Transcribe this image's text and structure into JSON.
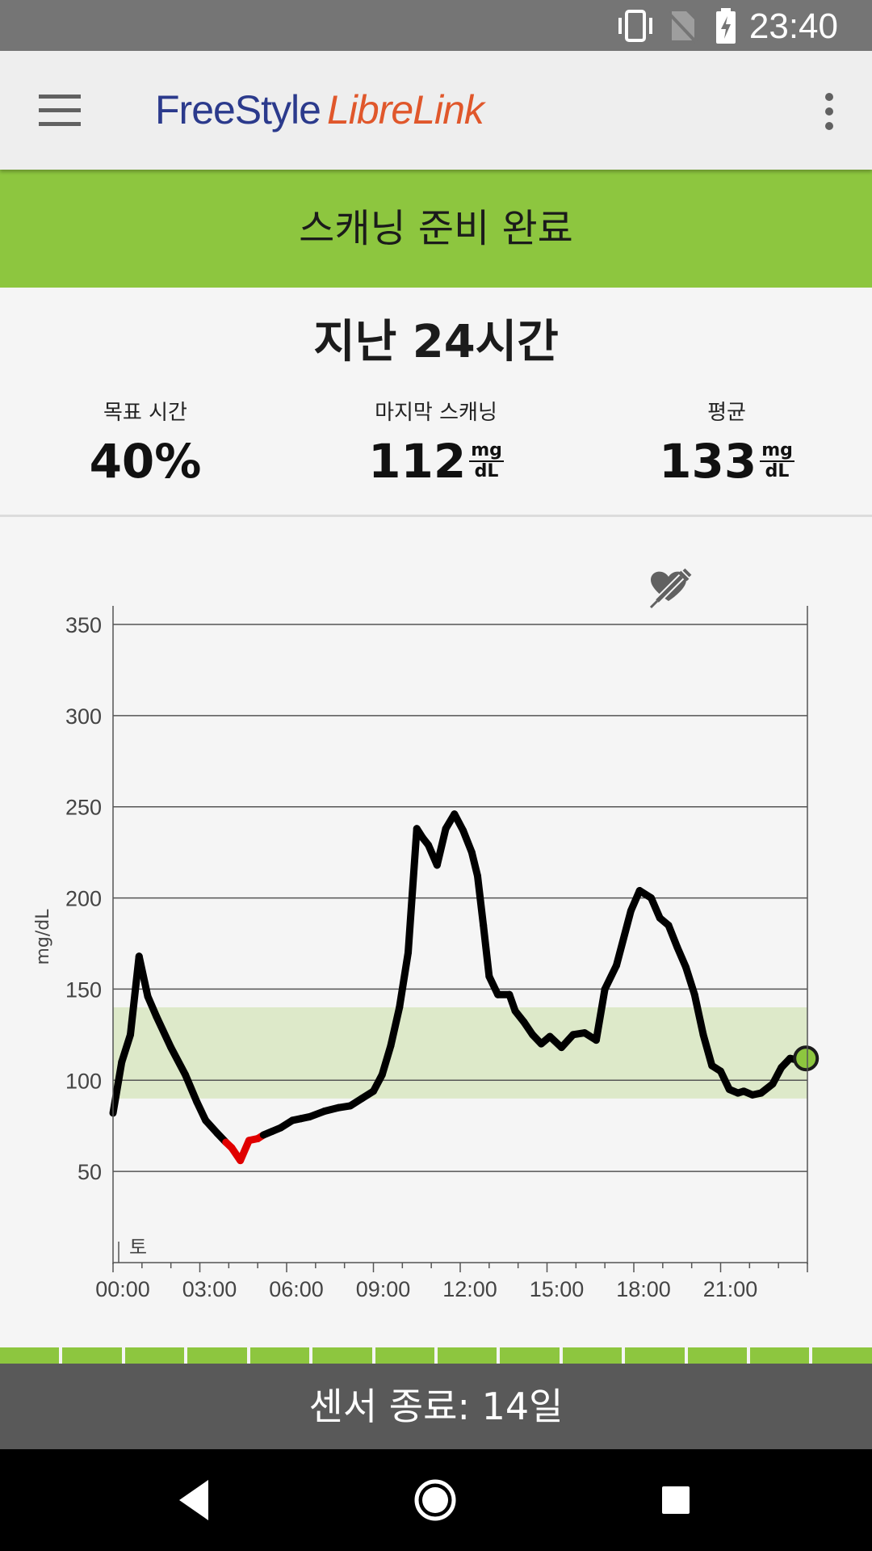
{
  "status": {
    "time": "23:40"
  },
  "app": {
    "logo_part1": "FreeStyle",
    "logo_part2": "LibreLink"
  },
  "banner": {
    "text": "스캐닝 준비 완료"
  },
  "period": {
    "title": "지난 24시간"
  },
  "stats": {
    "target": {
      "label": "목표 시간",
      "value": "40%"
    },
    "last_scan": {
      "label": "마지막 스캐닝",
      "value": "112",
      "unit_top": "mg",
      "unit_bottom": "dL"
    },
    "average": {
      "label": "평균",
      "value": "133",
      "unit_top": "mg",
      "unit_bottom": "dL"
    }
  },
  "footer": {
    "text": "센서 종료: 14일"
  },
  "colors": {
    "accent": "#8dc63f",
    "low": "#e00000",
    "line": "#000000",
    "target_band": "#dde9c9"
  },
  "chart_data": {
    "type": "line",
    "ylabel": "mg/dL",
    "ylim": [
      0,
      350
    ],
    "yticks": [
      50,
      100,
      150,
      200,
      250,
      300,
      350
    ],
    "xticks": [
      "00:00",
      "03:00",
      "06:00",
      "09:00",
      "12:00",
      "15:00",
      "18:00",
      "21:00"
    ],
    "xlim": [
      0,
      24
    ],
    "day_label": "토",
    "target_range": [
      90,
      140
    ],
    "low_threshold": 70,
    "series": [
      {
        "x": [
          0,
          0.3,
          0.6,
          0.9,
          1.2,
          1.5,
          2.0,
          2.5,
          2.9,
          3.2,
          3.6,
          3.9,
          4.1,
          4.4,
          4.7,
          5.0,
          5.2,
          5.5,
          5.8,
          6.2,
          6.5,
          6.8,
          7.3,
          7.8,
          8.2,
          8.6,
          9.0,
          9.3,
          9.6,
          9.9,
          10.2,
          10.5,
          10.7,
          10.9,
          11.2,
          11.5,
          11.8,
          12.1,
          12.4,
          12.6,
          12.8,
          13.0,
          13.3,
          13.7,
          13.9,
          14.2,
          14.5,
          14.8,
          15.1,
          15.5,
          15.9,
          16.3,
          16.7,
          17.0,
          17.4,
          17.9,
          18.2,
          18.6,
          18.9,
          19.2,
          19.5,
          19.8,
          20.1,
          20.4,
          20.7,
          21.0,
          21.3,
          21.6,
          21.8,
          22.1,
          22.4,
          22.8,
          23.1,
          23.4,
          23.7,
          23.95
        ],
        "y": [
          82,
          110,
          125,
          168,
          146,
          135,
          118,
          103,
          88,
          78,
          71,
          66,
          63,
          56,
          67,
          68,
          70,
          72,
          74,
          78,
          79,
          80,
          83,
          85,
          86,
          90,
          94,
          103,
          119,
          140,
          170,
          238,
          233,
          229,
          218,
          238,
          246,
          237,
          225,
          212,
          185,
          157,
          147,
          147,
          138,
          132,
          125,
          120,
          124,
          118,
          125,
          126,
          122,
          150,
          163,
          193,
          204,
          200,
          189,
          185,
          173,
          162,
          147,
          125,
          108,
          105,
          95,
          93,
          94,
          92,
          93,
          98,
          107,
          112,
          111,
          112
        ]
      }
    ]
  }
}
